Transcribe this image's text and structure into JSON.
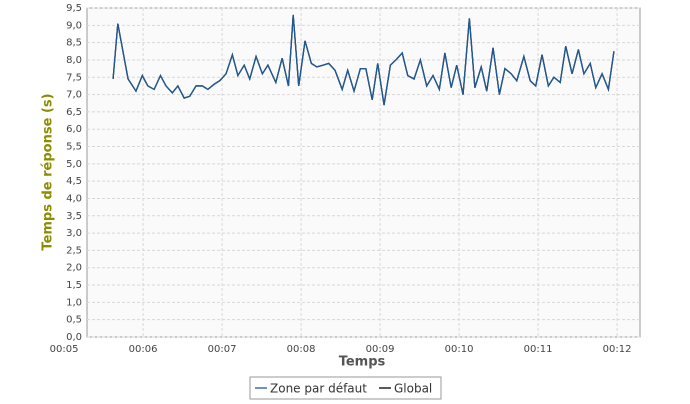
{
  "chart_data": {
    "type": "line",
    "x_label": "Temps",
    "y_label": "Temps de réponse (s)",
    "x": [
      5.62,
      5.68,
      5.81,
      5.91,
      5.99,
      6.06,
      6.14,
      6.22,
      6.29,
      6.37,
      6.44,
      6.52,
      6.59,
      6.67,
      6.75,
      6.82,
      6.9,
      6.97,
      7.05,
      7.13,
      7.2,
      7.28,
      7.35,
      7.43,
      7.51,
      7.58,
      7.68,
      7.76,
      7.84,
      7.9,
      7.97,
      8.05,
      8.13,
      8.2,
      8.28,
      8.35,
      8.43,
      8.52,
      8.59,
      8.67,
      8.75,
      8.82,
      8.9,
      8.97,
      9.05,
      9.13,
      9.2,
      9.28,
      9.35,
      9.43,
      9.51,
      9.59,
      9.67,
      9.75,
      9.82,
      9.9,
      9.97,
      10.05,
      10.13,
      10.2,
      10.28,
      10.35,
      10.43,
      10.51,
      10.58,
      10.66,
      10.73,
      10.82,
      10.9,
      10.97,
      11.05,
      11.13,
      11.2,
      11.28,
      11.35,
      11.43,
      11.51,
      11.58,
      11.66,
      11.73,
      11.81,
      11.89,
      11.96
    ],
    "series": [
      {
        "name": "Global",
        "color": "#000000",
        "values": [
          7.45,
          9.05,
          7.45,
          7.1,
          7.55,
          7.25,
          7.15,
          7.55,
          7.25,
          7.05,
          7.25,
          6.9,
          6.95,
          7.25,
          7.25,
          7.15,
          7.3,
          7.4,
          7.6,
          8.15,
          7.55,
          7.85,
          7.45,
          8.1,
          7.6,
          7.85,
          7.35,
          8.05,
          7.25,
          9.3,
          7.25,
          8.55,
          7.9,
          7.8,
          7.85,
          7.9,
          7.7,
          7.15,
          7.7,
          7.1,
          7.75,
          7.75,
          6.85,
          7.9,
          6.7,
          7.85,
          8.0,
          8.2,
          7.55,
          7.45,
          8.0,
          7.25,
          7.55,
          7.15,
          8.2,
          7.2,
          7.85,
          7.0,
          9.2,
          7.2,
          7.8,
          7.1,
          8.35,
          7.0,
          7.75,
          7.6,
          7.4,
          8.1,
          7.4,
          7.25,
          8.15,
          7.25,
          7.5,
          7.35,
          8.4,
          7.6,
          8.3,
          7.6,
          7.9,
          7.2,
          7.6,
          7.15,
          8.25
        ]
      },
      {
        "name": "Zone par défaut",
        "color": "#1f5a96",
        "values": [
          7.45,
          9.05,
          7.45,
          7.1,
          7.55,
          7.25,
          7.15,
          7.55,
          7.25,
          7.05,
          7.25,
          6.9,
          6.95,
          7.25,
          7.25,
          7.15,
          7.3,
          7.4,
          7.6,
          8.15,
          7.55,
          7.85,
          7.45,
          8.1,
          7.6,
          7.85,
          7.35,
          8.05,
          7.25,
          9.3,
          7.25,
          8.55,
          7.9,
          7.8,
          7.85,
          7.9,
          7.7,
          7.15,
          7.7,
          7.1,
          7.75,
          7.75,
          6.85,
          7.9,
          6.7,
          7.85,
          8.0,
          8.2,
          7.55,
          7.45,
          8.0,
          7.25,
          7.55,
          7.15,
          8.2,
          7.2,
          7.85,
          7.0,
          9.2,
          7.2,
          7.8,
          7.1,
          8.35,
          7.0,
          7.75,
          7.6,
          7.4,
          8.1,
          7.4,
          7.25,
          8.15,
          7.25,
          7.5,
          7.35,
          8.4,
          7.6,
          8.3,
          7.6,
          7.9,
          7.2,
          7.6,
          7.15,
          8.25
        ]
      }
    ],
    "xlim": [
      5.29,
      12.29
    ],
    "xticks": [
      {
        "value": 5,
        "label": "00:05"
      },
      {
        "value": 6,
        "label": "00:06"
      },
      {
        "value": 7,
        "label": "00:07"
      },
      {
        "value": 8,
        "label": "00:08"
      },
      {
        "value": 9,
        "label": "00:09"
      },
      {
        "value": 10,
        "label": "00:10"
      },
      {
        "value": 11,
        "label": "00:11"
      },
      {
        "value": 12,
        "label": "00:12"
      }
    ],
    "ylim": [
      0,
      9.5
    ],
    "yticks": [
      {
        "value": 0,
        "label": "0,0"
      },
      {
        "value": 0.5,
        "label": "0,5"
      },
      {
        "value": 1,
        "label": "1,0"
      },
      {
        "value": 1.5,
        "label": "1,5"
      },
      {
        "value": 2,
        "label": "2,0"
      },
      {
        "value": 2.5,
        "label": "2,5"
      },
      {
        "value": 3,
        "label": "3,0"
      },
      {
        "value": 3.5,
        "label": "3,5"
      },
      {
        "value": 4,
        "label": "4,0"
      },
      {
        "value": 4.5,
        "label": "4,5"
      },
      {
        "value": 5,
        "label": "5,0"
      },
      {
        "value": 5.5,
        "label": "5,5"
      },
      {
        "value": 6,
        "label": "6,0"
      },
      {
        "value": 6.5,
        "label": "6,5"
      },
      {
        "value": 7,
        "label": "7,0"
      },
      {
        "value": 7.5,
        "label": "7,5"
      },
      {
        "value": 8,
        "label": "8,0"
      },
      {
        "value": 8.5,
        "label": "8,5"
      },
      {
        "value": 9,
        "label": "9,0"
      },
      {
        "value": 9.5,
        "label": "9,5"
      }
    ],
    "grid": true,
    "legend": "bottom"
  }
}
